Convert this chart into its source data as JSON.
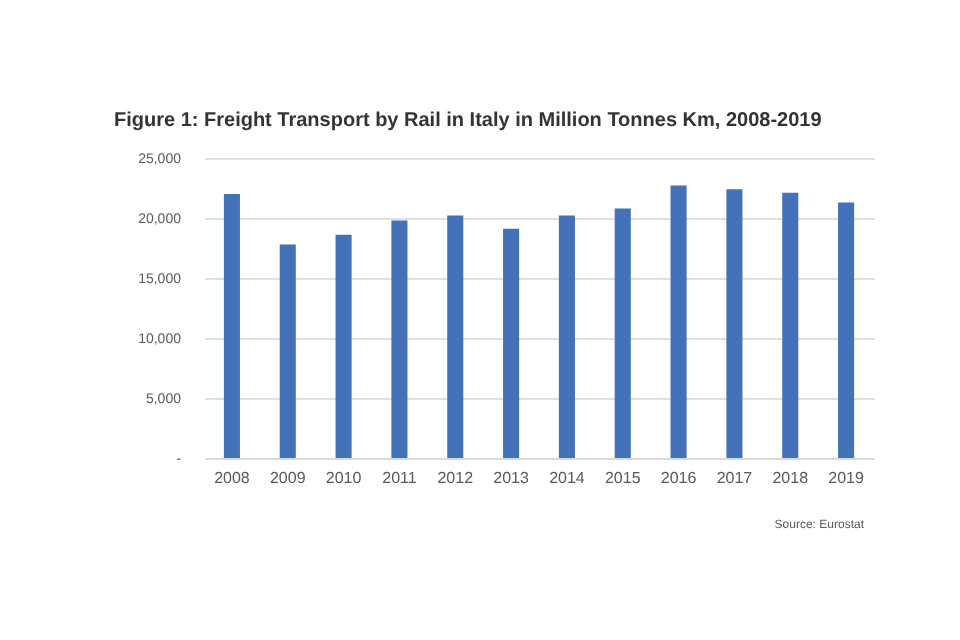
{
  "chart_data": {
    "type": "bar",
    "title": "Figure 1: Freight Transport by Rail in Italy in Million Tonnes Km, 2008-2019",
    "categories": [
      "2008",
      "2009",
      "2010",
      "2011",
      "2012",
      "2013",
      "2014",
      "2015",
      "2016",
      "2017",
      "2018",
      "2019"
    ],
    "values": [
      22000,
      17800,
      18600,
      19800,
      20200,
      19100,
      20200,
      20800,
      22700,
      22400,
      22100,
      21300
    ],
    "color": "#4472b8",
    "ylim": [
      0,
      25000
    ],
    "yticks": [
      {
        "value": 0,
        "label": "-"
      },
      {
        "value": 5000,
        "label": "5,000"
      },
      {
        "value": 10000,
        "label": "10,000"
      },
      {
        "value": 15000,
        "label": "15,000"
      },
      {
        "value": 20000,
        "label": "20,000"
      },
      {
        "value": 25000,
        "label": "25,000"
      }
    ],
    "grid": "y",
    "annotations": [
      "Source: Eurostat"
    ]
  }
}
